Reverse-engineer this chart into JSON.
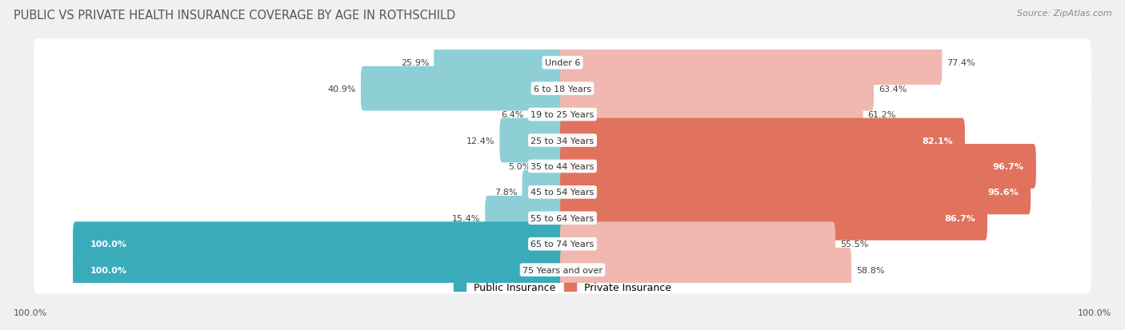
{
  "title": "PUBLIC VS PRIVATE HEALTH INSURANCE COVERAGE BY AGE IN ROTHSCHILD",
  "source": "Source: ZipAtlas.com",
  "categories": [
    "Under 6",
    "6 to 18 Years",
    "19 to 25 Years",
    "25 to 34 Years",
    "35 to 44 Years",
    "45 to 54 Years",
    "55 to 64 Years",
    "65 to 74 Years",
    "75 Years and over"
  ],
  "public_values": [
    25.9,
    40.9,
    6.4,
    12.4,
    5.0,
    7.8,
    15.4,
    100.0,
    100.0
  ],
  "private_values": [
    77.4,
    63.4,
    61.2,
    82.1,
    96.7,
    95.6,
    86.7,
    55.5,
    58.8
  ],
  "public_color_dark": "#3aabba",
  "public_color_light": "#8ecfd6",
  "private_color_dark": "#e0725e",
  "private_color_light": "#f0b8b0",
  "bg_color": "#f0f0f0",
  "row_bg_color": "#e8e8ec",
  "title_color": "#555555",
  "legend_public": "Public Insurance",
  "legend_private": "Private Insurance",
  "max_value": 100.0,
  "pub_dark_threshold": 100.0,
  "priv_dark_threshold": 80.0
}
